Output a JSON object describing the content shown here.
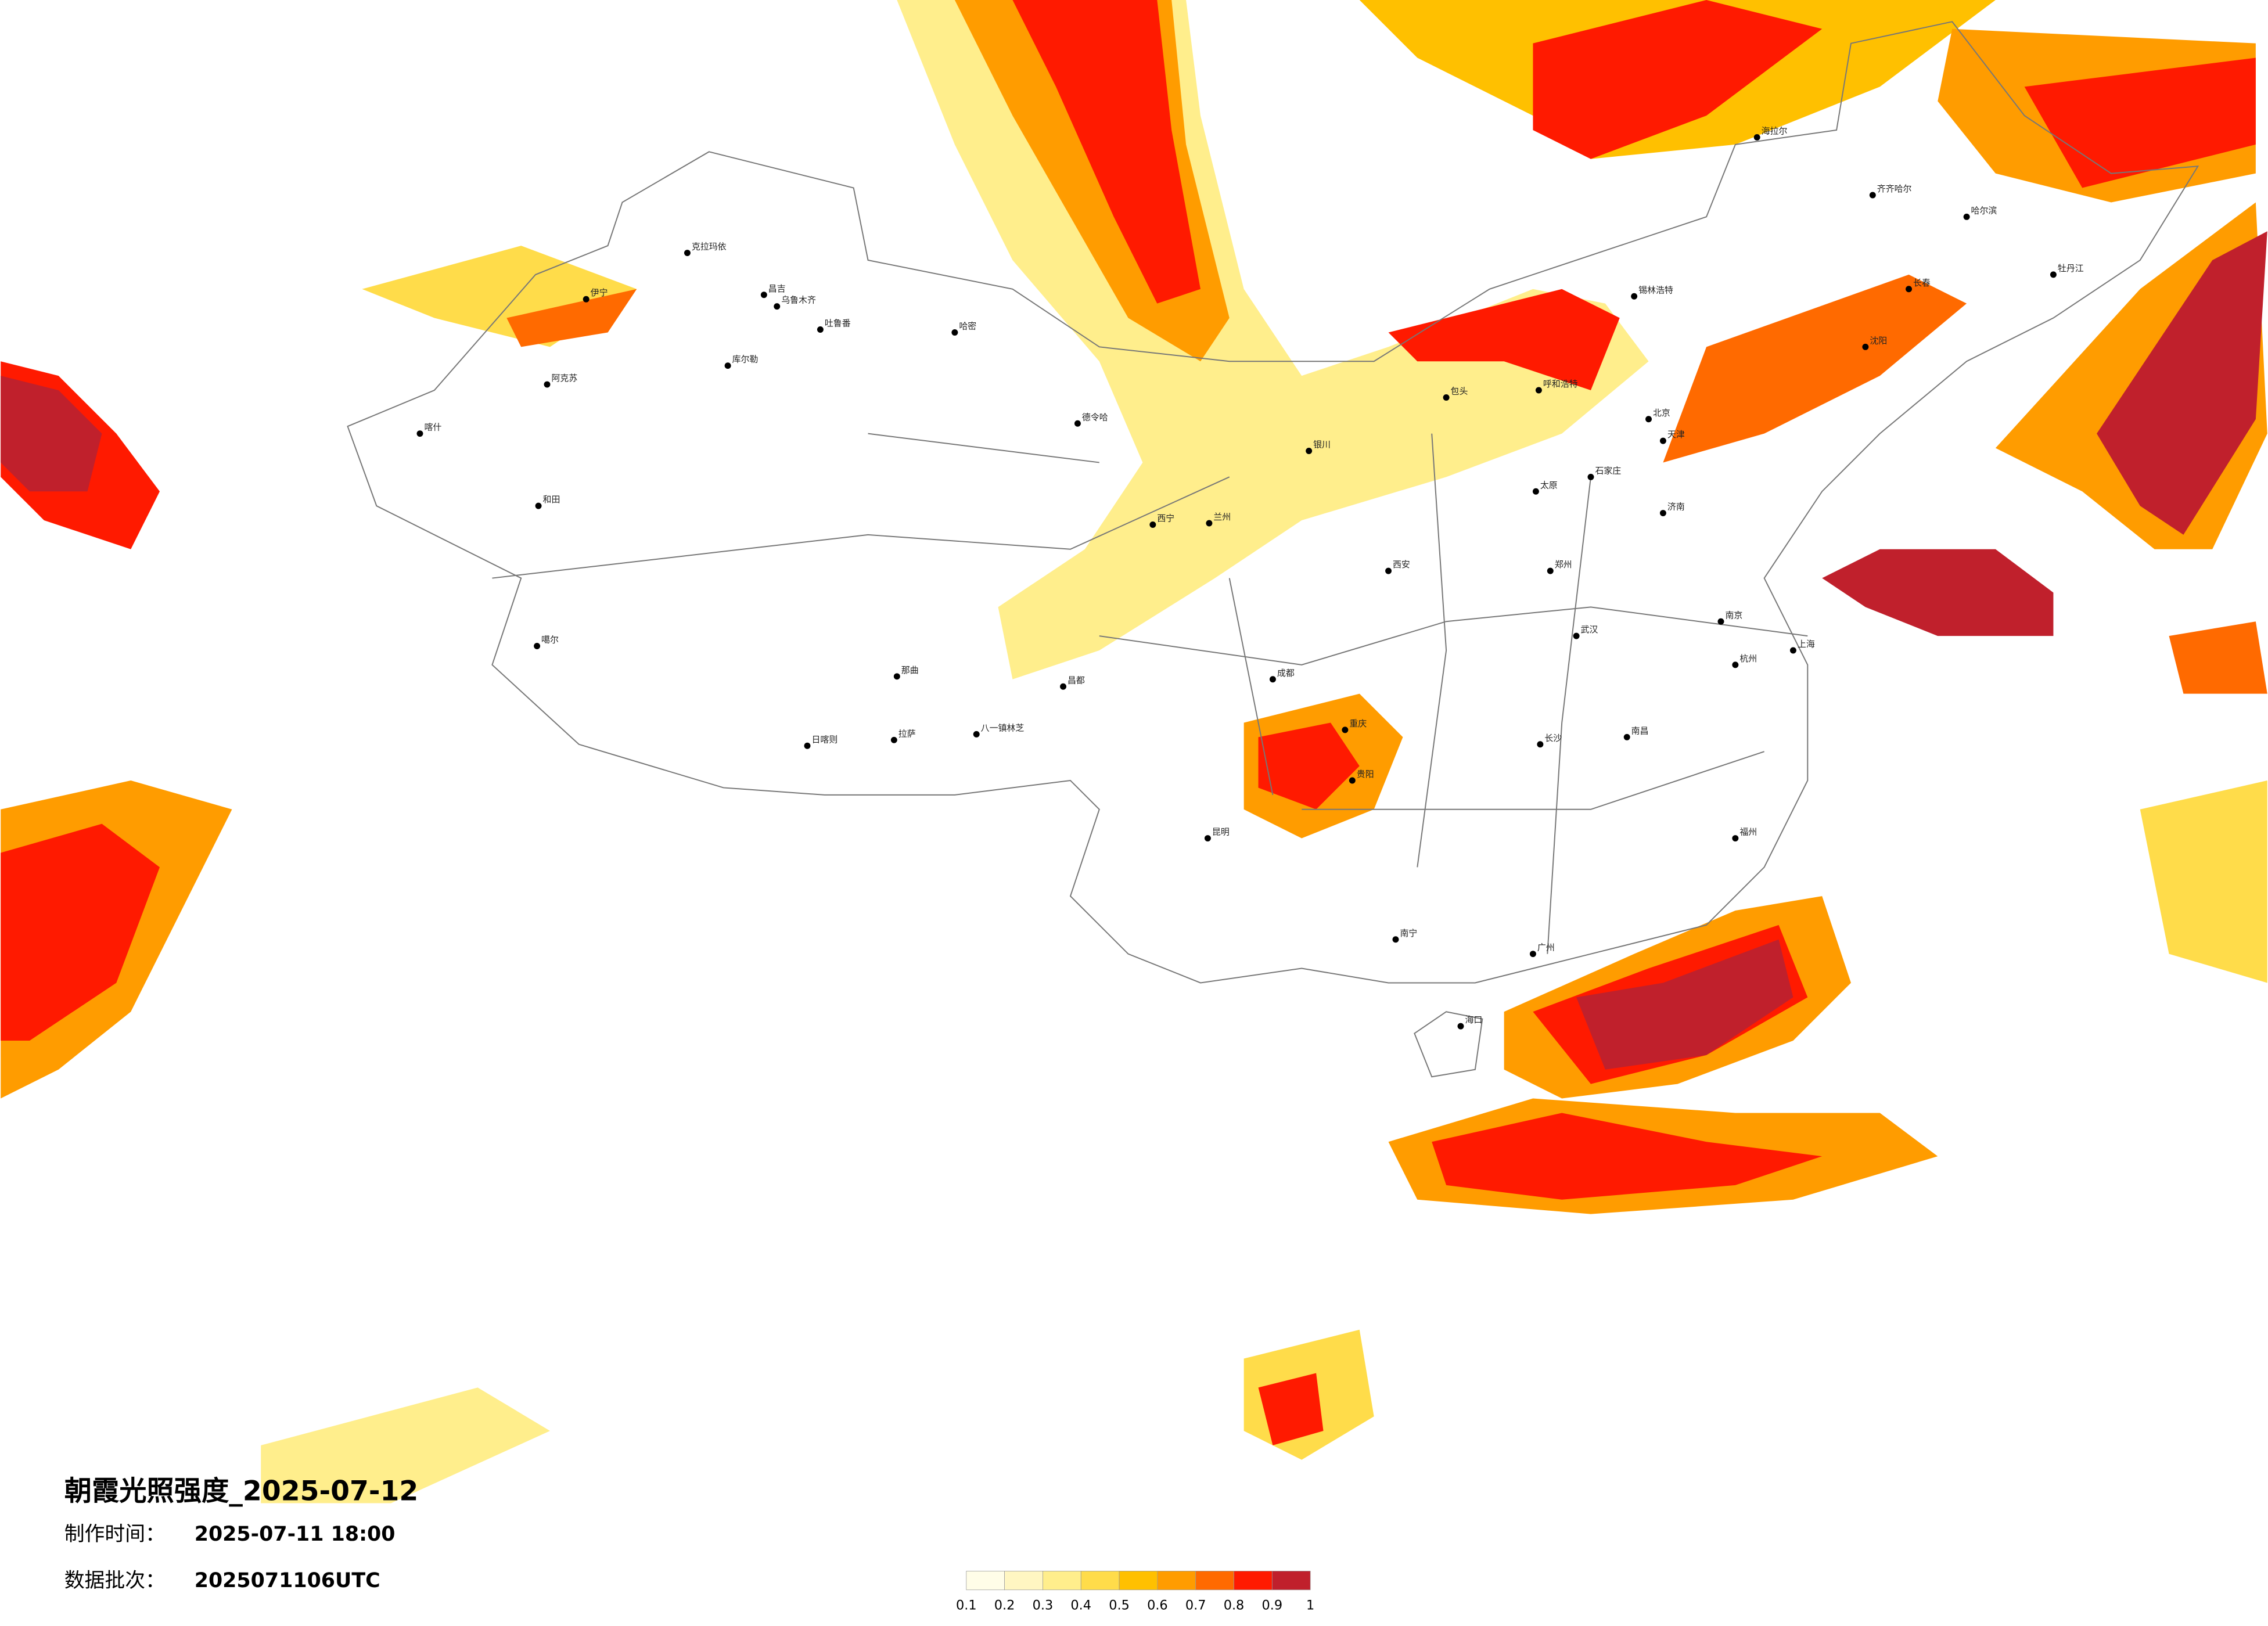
{
  "title": "朝霞光照强度_2025-07-12",
  "made_label": "制作时间：",
  "made_time": "2025-07-11 18:00",
  "batch_label": "数据批次：",
  "batch": "2025071106UTC",
  "colorbar": {
    "colors": [
      "#fffde8",
      "#fff6c2",
      "#ffee8c",
      "#ffdc4a",
      "#ffc000",
      "#ff9c00",
      "#ff6a00",
      "#ff1a00",
      "#c0202c"
    ],
    "ticks": [
      0.1,
      0.2,
      0.3,
      0.4,
      0.5,
      0.6,
      0.7,
      0.8,
      0.9,
      1
    ]
  },
  "cities": [
    "克拉玛依",
    "伊宁",
    "昌吉",
    "乌鲁木齐",
    "吐鲁番",
    "哈密",
    "库尔勒",
    "阿克苏",
    "喀什",
    "和田",
    "噶尔",
    "日喀则",
    "拉萨",
    "八一镇林芝",
    "那曲",
    "昌都",
    "德令哈",
    "西宁",
    "兰州",
    "银川",
    "呼和浩特",
    "北京",
    "天津",
    "石家庄",
    "太原",
    "济南",
    "郑州",
    "西安",
    "成都",
    "重庆",
    "武汉",
    "长沙",
    "南昌",
    "杭州",
    "上海",
    "南京",
    "福州",
    "广州",
    "南宁",
    "海口",
    "昆明",
    "贵阳",
    "哈尔滨",
    "长春",
    "沈阳",
    "牡丹江",
    "齐齐哈尔",
    "海拉尔",
    "锡林浩特",
    "包头"
  ]
}
